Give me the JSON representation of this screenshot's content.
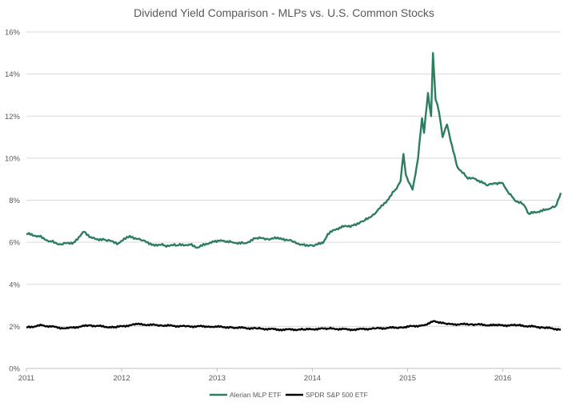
{
  "chart_data": {
    "type": "line",
    "title": "Dividend Yield Comparison - MLPs vs. U.S. Common Stocks",
    "xlabel": "",
    "ylabel": "",
    "x_ticks": [
      "2011",
      "2012",
      "2013",
      "2014",
      "2015",
      "2016"
    ],
    "x_range": [
      "2011-01-01",
      "2016-08-10"
    ],
    "y_ticks": [
      "0%",
      "2%",
      "4%",
      "6%",
      "8%",
      "10%",
      "12%",
      "14%",
      "16%"
    ],
    "ylim": [
      0,
      16
    ],
    "grid": "horizontal",
    "legend_position": "bottom",
    "series": [
      {
        "name": "Alerian MLP ETF",
        "color": "#2e7d5e",
        "points": [
          [
            "2011-01-01",
            6.4
          ],
          [
            "2011-02-15",
            6.3
          ],
          [
            "2011-04-01",
            6.05
          ],
          [
            "2011-05-15",
            5.9
          ],
          [
            "2011-07-01",
            6.0
          ],
          [
            "2011-08-10",
            6.5
          ],
          [
            "2011-09-10",
            6.2
          ],
          [
            "2011-11-01",
            6.1
          ],
          [
            "2011-12-20",
            5.95
          ],
          [
            "2012-02-01",
            6.3
          ],
          [
            "2012-03-15",
            6.1
          ],
          [
            "2012-05-01",
            5.9
          ],
          [
            "2012-06-15",
            5.85
          ],
          [
            "2012-08-01",
            5.85
          ],
          [
            "2012-09-15",
            5.9
          ],
          [
            "2012-10-20",
            5.75
          ],
          [
            "2012-12-15",
            6.05
          ],
          [
            "2013-01-15",
            6.1
          ],
          [
            "2013-03-01",
            6.0
          ],
          [
            "2013-04-15",
            5.95
          ],
          [
            "2013-06-01",
            6.2
          ],
          [
            "2013-07-15",
            6.15
          ],
          [
            "2013-09-01",
            6.2
          ],
          [
            "2013-10-15",
            6.05
          ],
          [
            "2013-11-20",
            5.9
          ],
          [
            "2014-01-01",
            5.85
          ],
          [
            "2014-02-10",
            5.95
          ],
          [
            "2014-03-01",
            6.4
          ],
          [
            "2014-04-15",
            6.7
          ],
          [
            "2014-06-01",
            6.8
          ],
          [
            "2014-07-15",
            7.0
          ],
          [
            "2014-09-01",
            7.4
          ],
          [
            "2014-10-15",
            8.0
          ],
          [
            "2014-11-15",
            8.5
          ],
          [
            "2014-12-05",
            8.9
          ],
          [
            "2014-12-16",
            10.2
          ],
          [
            "2014-12-25",
            9.2
          ],
          [
            "2015-01-20",
            8.5
          ],
          [
            "2015-02-10",
            10.0
          ],
          [
            "2015-02-25",
            11.9
          ],
          [
            "2015-03-05",
            11.2
          ],
          [
            "2015-03-20",
            13.1
          ],
          [
            "2015-04-01",
            12.0
          ],
          [
            "2015-04-08",
            15.0
          ],
          [
            "2015-04-18",
            12.8
          ],
          [
            "2015-05-01",
            12.2
          ],
          [
            "2015-05-15",
            11.0
          ],
          [
            "2015-06-01",
            11.6
          ],
          [
            "2015-06-15",
            10.8
          ],
          [
            "2015-07-10",
            9.6
          ],
          [
            "2015-08-15",
            9.1
          ],
          [
            "2015-09-20",
            9.0
          ],
          [
            "2015-11-01",
            8.7
          ],
          [
            "2015-12-01",
            8.8
          ],
          [
            "2016-01-01",
            8.8
          ],
          [
            "2016-01-20",
            8.4
          ],
          [
            "2016-02-15",
            8.0
          ],
          [
            "2016-03-20",
            7.8
          ],
          [
            "2016-04-10",
            7.35
          ],
          [
            "2016-05-15",
            7.45
          ],
          [
            "2016-06-20",
            7.55
          ],
          [
            "2016-07-20",
            7.7
          ],
          [
            "2016-08-10",
            8.35
          ]
        ]
      },
      {
        "name": "SPDR S&P 500 ETF",
        "color": "#000000",
        "points": [
          [
            "2011-01-01",
            1.95
          ],
          [
            "2011-03-01",
            2.05
          ],
          [
            "2011-06-01",
            1.9
          ],
          [
            "2011-09-01",
            2.05
          ],
          [
            "2011-12-01",
            1.95
          ],
          [
            "2012-03-01",
            2.1
          ],
          [
            "2012-06-01",
            2.05
          ],
          [
            "2012-09-01",
            2.0
          ],
          [
            "2012-12-01",
            2.0
          ],
          [
            "2013-03-01",
            1.95
          ],
          [
            "2013-06-01",
            1.9
          ],
          [
            "2013-09-01",
            1.85
          ],
          [
            "2013-12-01",
            1.85
          ],
          [
            "2014-03-01",
            1.9
          ],
          [
            "2014-06-01",
            1.85
          ],
          [
            "2014-09-01",
            1.9
          ],
          [
            "2014-12-01",
            1.95
          ],
          [
            "2015-03-01",
            2.05
          ],
          [
            "2015-04-15",
            2.25
          ],
          [
            "2015-06-01",
            2.1
          ],
          [
            "2015-09-01",
            2.1
          ],
          [
            "2015-12-01",
            2.05
          ],
          [
            "2016-03-01",
            2.05
          ],
          [
            "2016-06-01",
            1.95
          ],
          [
            "2016-08-10",
            1.85
          ]
        ]
      }
    ]
  }
}
